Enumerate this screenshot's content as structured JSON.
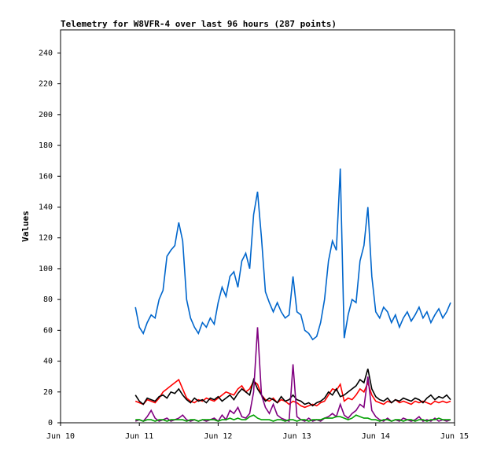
{
  "chart_data": {
    "type": "line",
    "title": "Telemetry for W8VFR-4 over last 96 hours (287 points)",
    "ylabel": "Values",
    "xlim": [
      10,
      15
    ],
    "xticks": [
      {
        "value": 10,
        "label": "Jun 10"
      },
      {
        "value": 11,
        "label": "Jun 11"
      },
      {
        "value": 12,
        "label": "Jun 12"
      },
      {
        "value": 13,
        "label": "Jun 13"
      },
      {
        "value": 14,
        "label": "Jun 14"
      },
      {
        "value": 15,
        "label": "Jun 15"
      }
    ],
    "ylim": [
      0,
      255
    ],
    "yticks": [
      0,
      20,
      40,
      60,
      80,
      100,
      120,
      140,
      160,
      180,
      200,
      220,
      240
    ],
    "grid": false,
    "x": [
      10.95,
      11,
      11.05,
      11.1,
      11.15,
      11.2,
      11.25,
      11.3,
      11.35,
      11.4,
      11.45,
      11.5,
      11.55,
      11.6,
      11.65,
      11.7,
      11.75,
      11.8,
      11.85,
      11.9,
      11.95,
      12,
      12.05,
      12.1,
      12.15,
      12.2,
      12.25,
      12.3,
      12.35,
      12.4,
      12.45,
      12.5,
      12.55,
      12.6,
      12.65,
      12.7,
      12.75,
      12.8,
      12.85,
      12.9,
      12.95,
      13,
      13.05,
      13.1,
      13.15,
      13.2,
      13.25,
      13.3,
      13.35,
      13.4,
      13.45,
      13.5,
      13.55,
      13.6,
      13.65,
      13.7,
      13.75,
      13.8,
      13.85,
      13.9,
      13.95,
      14,
      14.05,
      14.1,
      14.15,
      14.2,
      14.25,
      14.3,
      14.35,
      14.4,
      14.45,
      14.5,
      14.55,
      14.6,
      14.65,
      14.7,
      14.75,
      14.8,
      14.85,
      14.9,
      14.95
    ],
    "series": [
      {
        "color": "#0066cc",
        "values": [
          75,
          62,
          58,
          65,
          70,
          68,
          80,
          86,
          108,
          112,
          115,
          130,
          118,
          80,
          68,
          62,
          58,
          65,
          62,
          68,
          64,
          78,
          88,
          82,
          95,
          98,
          88,
          105,
          110,
          100,
          135,
          150,
          120,
          85,
          78,
          72,
          78,
          72,
          68,
          70,
          95,
          72,
          70,
          60,
          58,
          54,
          56,
          65,
          80,
          105,
          118,
          112,
          165,
          55,
          70,
          80,
          78,
          105,
          115,
          140,
          95,
          72,
          68,
          75,
          72,
          65,
          70,
          62,
          68,
          72,
          66,
          70,
          75,
          68,
          72,
          65,
          70,
          74,
          68,
          72,
          78
        ]
      },
      {
        "color": "#ff0000",
        "values": [
          14,
          13,
          12,
          15,
          14,
          13,
          16,
          20,
          22,
          24,
          26,
          28,
          22,
          16,
          14,
          13,
          15,
          14,
          16,
          15,
          14,
          16,
          18,
          20,
          19,
          18,
          22,
          24,
          20,
          22,
          27,
          25,
          18,
          15,
          14,
          16,
          13,
          15,
          14,
          12,
          14,
          13,
          11,
          10,
          11,
          12,
          11,
          13,
          14,
          18,
          22,
          21,
          25,
          14,
          16,
          15,
          18,
          22,
          20,
          26,
          18,
          14,
          13,
          12,
          14,
          13,
          15,
          13,
          14,
          13,
          12,
          14,
          13,
          14,
          13,
          12,
          14,
          13,
          14,
          13,
          14
        ]
      },
      {
        "color": "#000000",
        "values": [
          18,
          14,
          12,
          16,
          15,
          14,
          17,
          18,
          16,
          20,
          19,
          22,
          18,
          15,
          13,
          16,
          14,
          15,
          13,
          16,
          15,
          17,
          14,
          16,
          18,
          15,
          19,
          22,
          20,
          18,
          28,
          22,
          18,
          14,
          16,
          15,
          13,
          17,
          14,
          15,
          18,
          15,
          14,
          12,
          13,
          11,
          13,
          14,
          16,
          20,
          18,
          22,
          17,
          18,
          20,
          22,
          24,
          28,
          26,
          35,
          22,
          17,
          15,
          14,
          16,
          13,
          15,
          14,
          16,
          15,
          14,
          16,
          15,
          13,
          16,
          18,
          15,
          17,
          16,
          18,
          15
        ]
      },
      {
        "color": "#800080",
        "values": [
          1,
          2,
          1,
          4,
          8,
          3,
          1,
          2,
          3,
          1,
          2,
          3,
          5,
          2,
          1,
          2,
          1,
          2,
          1,
          2,
          3,
          1,
          5,
          2,
          8,
          6,
          10,
          4,
          3,
          6,
          20,
          62,
          18,
          10,
          6,
          12,
          5,
          3,
          2,
          1,
          38,
          4,
          2,
          1,
          3,
          1,
          2,
          1,
          3,
          4,
          6,
          4,
          12,
          5,
          3,
          6,
          8,
          12,
          10,
          30,
          8,
          4,
          2,
          1,
          3,
          1,
          2,
          1,
          3,
          2,
          1,
          2,
          4,
          1,
          2,
          1,
          3,
          1,
          2,
          1,
          2
        ]
      },
      {
        "color": "#00a000",
        "values": [
          2,
          2,
          1,
          2,
          2,
          1,
          2,
          2,
          1,
          2,
          2,
          2,
          2,
          1,
          2,
          2,
          1,
          2,
          2,
          2,
          2,
          1,
          2,
          2,
          3,
          2,
          3,
          2,
          2,
          4,
          5,
          3,
          2,
          2,
          2,
          1,
          2,
          2,
          1,
          2,
          2,
          1,
          2,
          2,
          1,
          2,
          2,
          2,
          3,
          3,
          3,
          4,
          4,
          3,
          2,
          3,
          5,
          4,
          3,
          3,
          2,
          2,
          1,
          2,
          2,
          1,
          2,
          2,
          1,
          2,
          2,
          1,
          2,
          2,
          1,
          2,
          2,
          3,
          2,
          2,
          2
        ]
      }
    ]
  }
}
